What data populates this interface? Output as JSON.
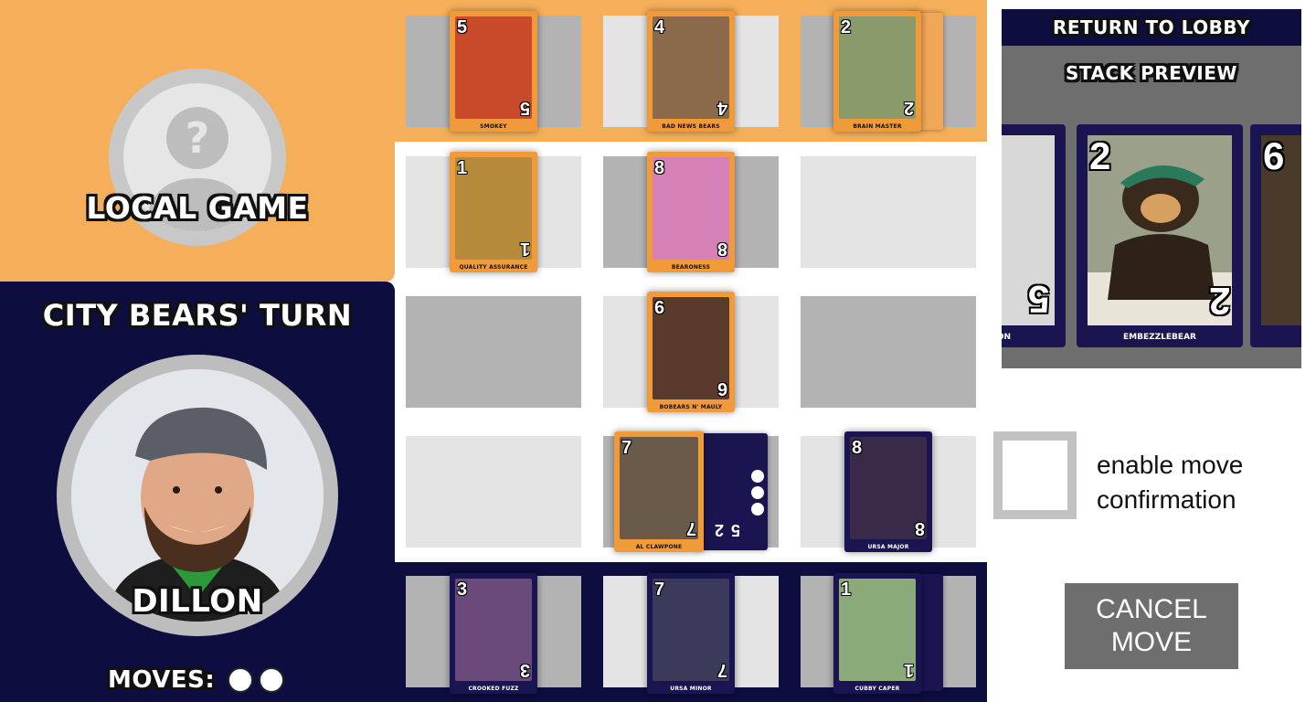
{
  "opponent": {
    "label": "LOCAL GAME",
    "avatar": "unknown-user-icon",
    "panel_color": "#f5af5a"
  },
  "player": {
    "turn_label": "CITY BEARS' TURN",
    "name": "DILLON",
    "moves_label": "MOVES:",
    "moves_remaining": 2,
    "panel_color": "#0d0d40"
  },
  "board": {
    "opponent_hand": [
      {
        "value": "5",
        "name": "SMOKEY",
        "color": "#c94a2a"
      },
      {
        "value": "4",
        "name": "BAD NEWS BEARS",
        "color": "#8a6a4a"
      },
      {
        "value": "2",
        "name": "BRAIN MASTER",
        "color": "#8a9a6a"
      }
    ],
    "rows": [
      [
        {
          "value": "1",
          "name": "QUALITY ASSURANCE",
          "color": "#b58a3a"
        },
        {
          "value": "8",
          "name": "BEARONESS",
          "color": "#d680b8"
        }
      ],
      [
        {
          "value": "6",
          "name": "BOBEARS N' MAULY",
          "color": "#5a3a2a"
        }
      ],
      [
        {
          "value": "7",
          "name": "AL CLAWPONE",
          "color": "#6a5a4a"
        },
        {
          "value": "8",
          "name": "URSA MAJOR",
          "color": "#3a2a4a"
        }
      ]
    ],
    "stack_under": [
      "2",
      "5"
    ],
    "player_hand": [
      {
        "value": "3",
        "name": "CROOKED FUZZ",
        "color": "#6a4a7a"
      },
      {
        "value": "7",
        "name": "URSA MINOR",
        "color": "#3a3a5a"
      },
      {
        "value": "1",
        "name": "CUBBY CAPER",
        "color": "#8aaa7a"
      }
    ]
  },
  "right": {
    "return_label": "RETURN TO LOBBY",
    "preview_title": "STACK PREVIEW",
    "preview": {
      "left_value": "5",
      "left_name_fragment": "ON",
      "center_value": "2",
      "center_name": "EMBEZZLEBEAR",
      "right_value": "6"
    },
    "confirm_label": "enable move confirmation",
    "confirm_checked": false,
    "cancel_line1": "CANCEL",
    "cancel_line2": "MOVE"
  }
}
